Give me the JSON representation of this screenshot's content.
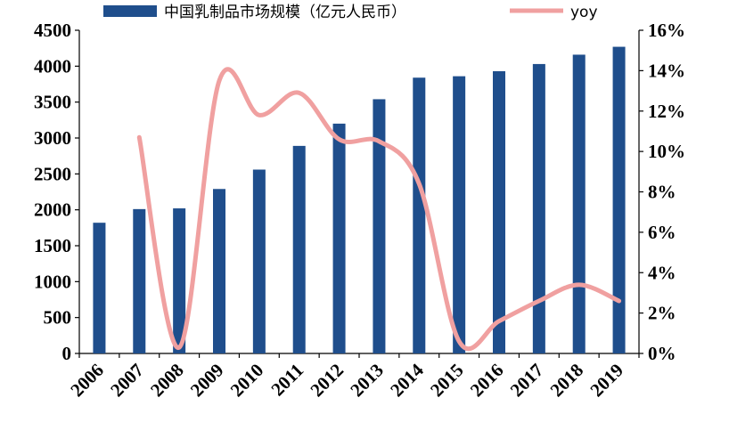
{
  "chart_data": {
    "type": "bar",
    "categories": [
      "2006",
      "2007",
      "2008",
      "2009",
      "2010",
      "2011",
      "2012",
      "2013",
      "2014",
      "2015",
      "2016",
      "2017",
      "2018",
      "2019"
    ],
    "series": [
      {
        "name": "中国乳制品市场规模（亿元人民币）",
        "type": "bar",
        "axis": "left",
        "color": "#1f4e8c",
        "values": [
          1820,
          2010,
          2020,
          2290,
          2560,
          2890,
          3200,
          3540,
          3840,
          3860,
          3930,
          4030,
          4160,
          4270
        ]
      },
      {
        "name": "yoy",
        "type": "line",
        "axis": "right",
        "color": "#f0a0a0",
        "values": [
          null,
          10.7,
          0.3,
          13.5,
          11.8,
          12.9,
          10.6,
          10.5,
          8.4,
          0.6,
          1.6,
          2.6,
          3.4,
          2.6
        ]
      }
    ],
    "y_left": {
      "range": [
        0,
        4500
      ],
      "ticks": [
        "0",
        "500",
        "1000",
        "1500",
        "2000",
        "2500",
        "3000",
        "3500",
        "4000",
        "4500"
      ]
    },
    "y_right": {
      "range": [
        0,
        16
      ],
      "ticks": [
        "0%",
        "2%",
        "4%",
        "6%",
        "8%",
        "10%",
        "12%",
        "14%",
        "16%"
      ]
    },
    "grid": false,
    "legend": "top"
  }
}
